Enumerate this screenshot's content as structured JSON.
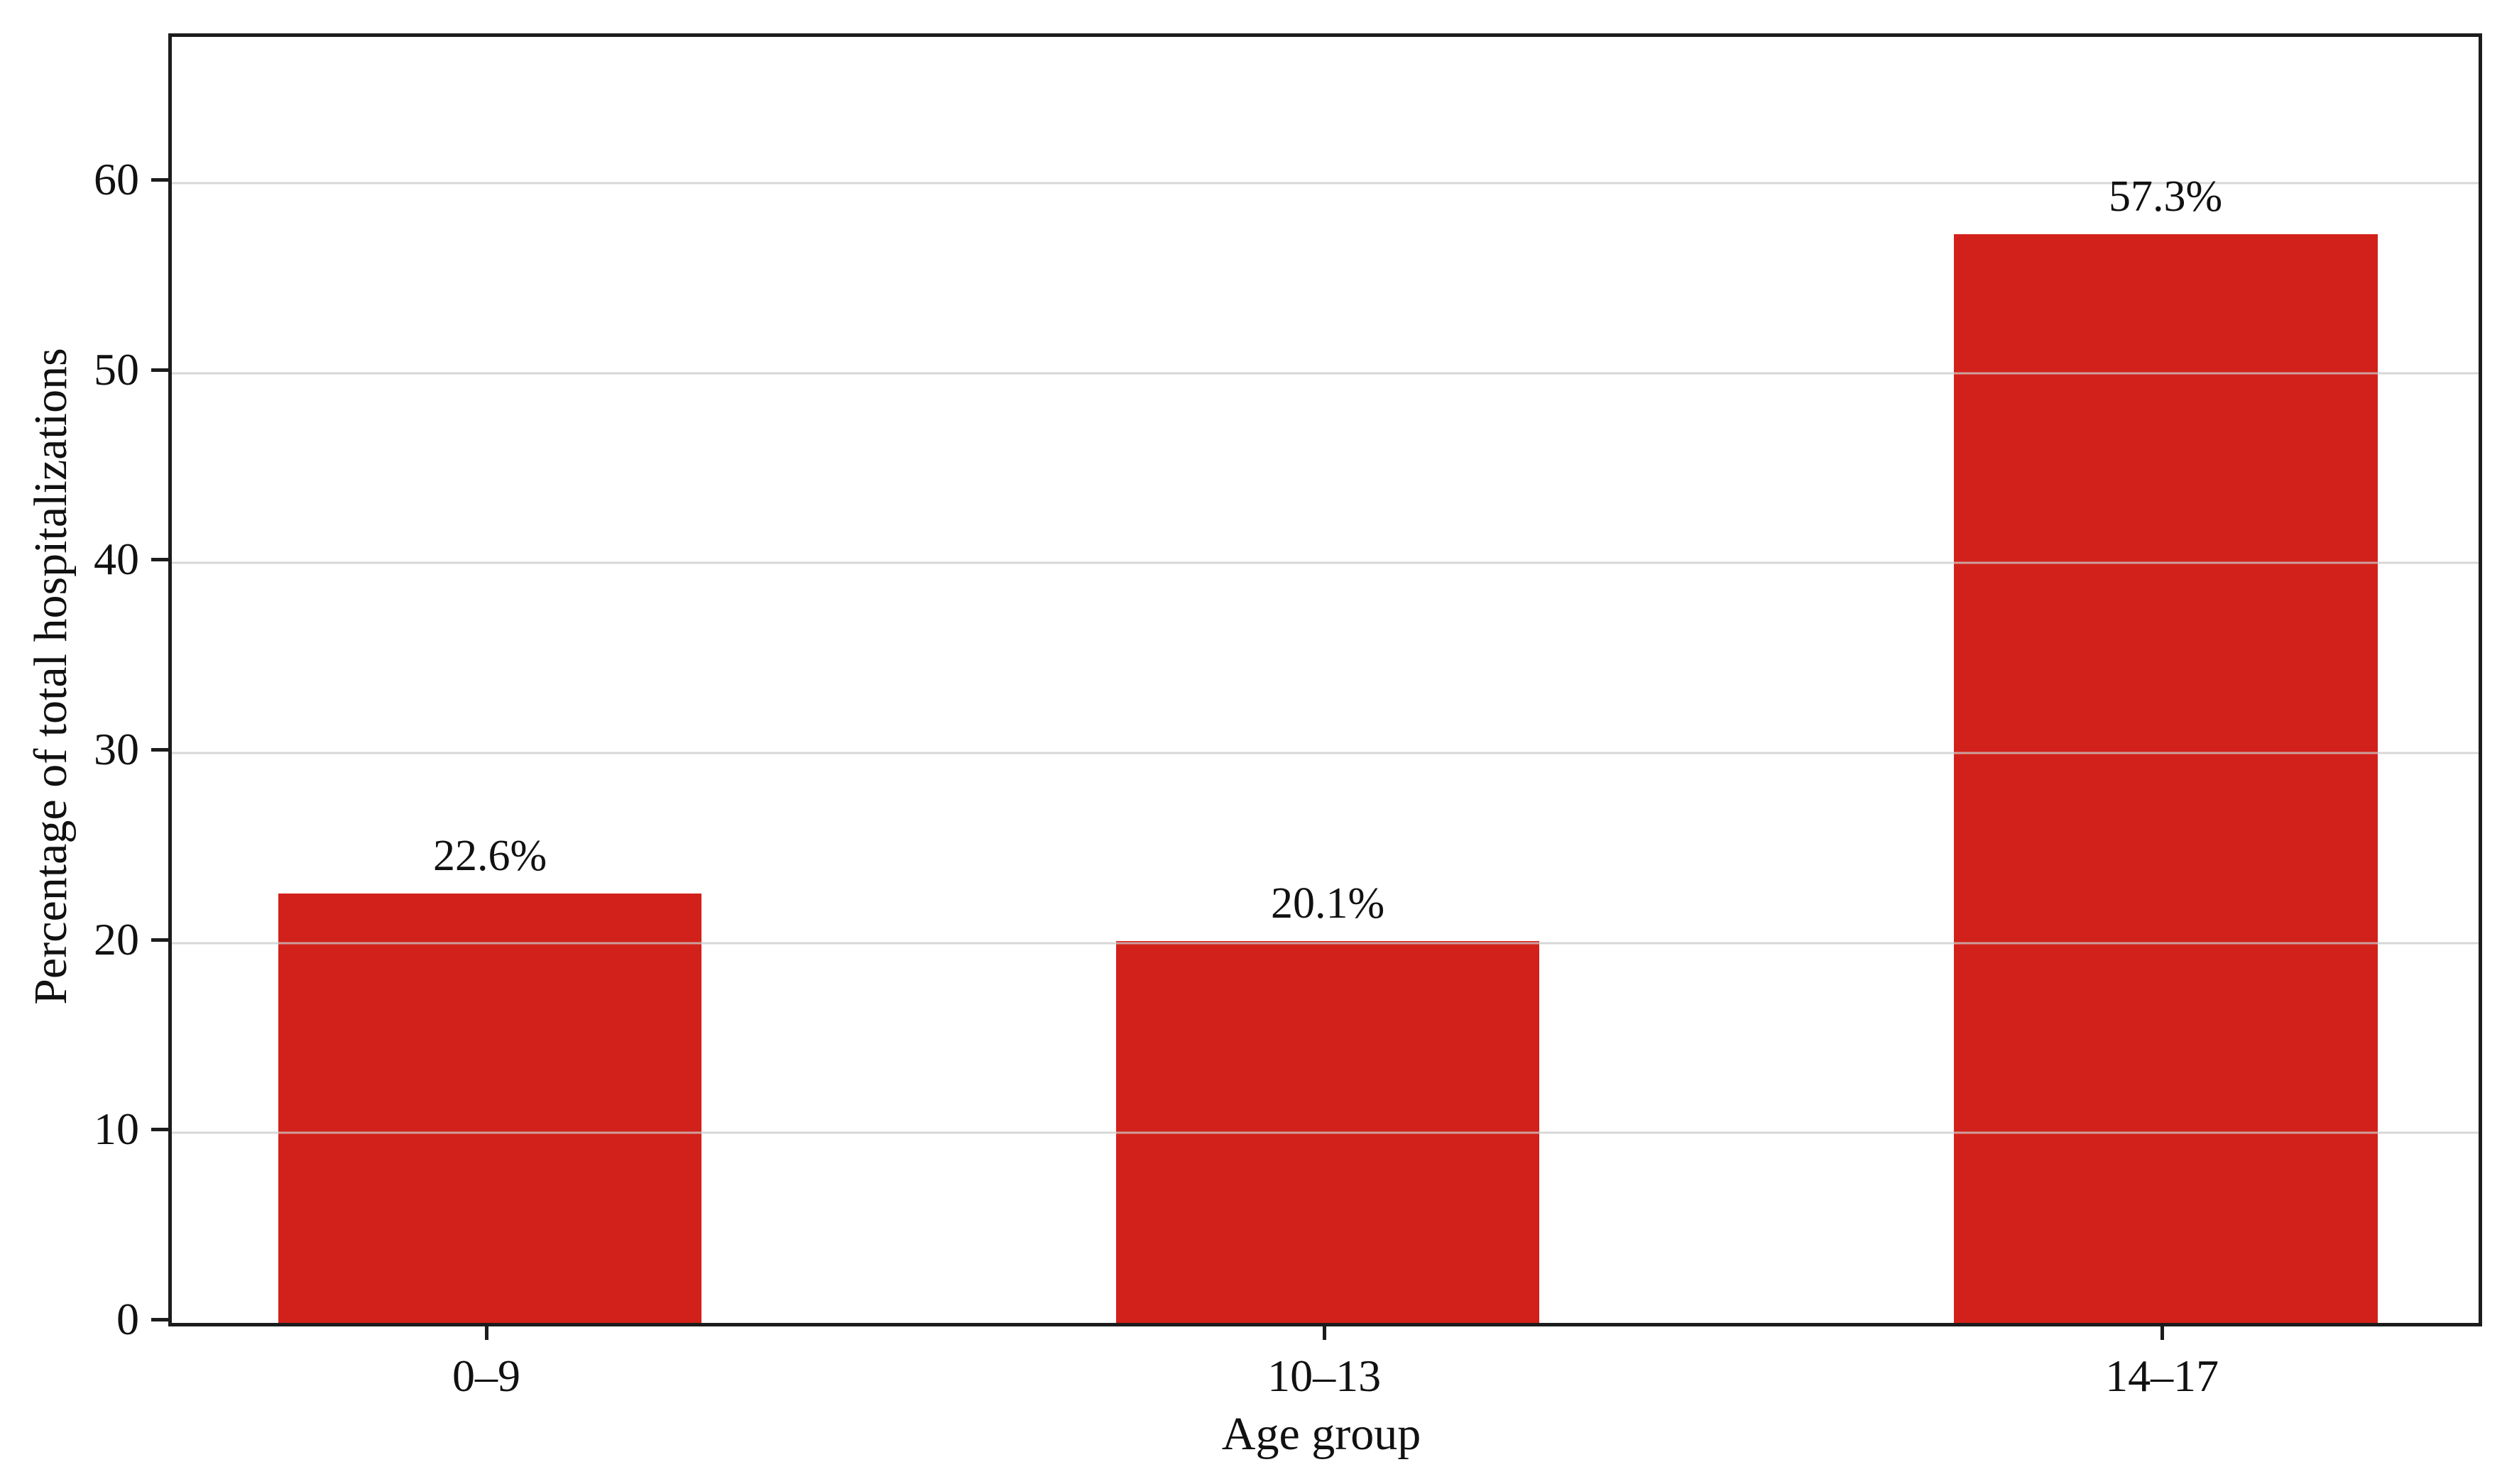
{
  "chart_data": {
    "type": "bar",
    "categories": [
      "0–9",
      "10–13",
      "14–17"
    ],
    "values": [
      22.6,
      20.1,
      57.3
    ],
    "bar_labels": [
      "22.6%",
      "20.1%",
      "57.3%"
    ],
    "title": "",
    "xlabel": "Age group",
    "ylabel": "Percentage of total hospitalizations",
    "ylim": [
      0,
      67.7
    ],
    "yticks": [
      0,
      10,
      20,
      30,
      40,
      50,
      60
    ],
    "grid": "horizontal-only, drawn over bars",
    "legend_position": "none",
    "colors": {
      "bar": "#d2211a",
      "grid": "#c9c9c9",
      "spine": "#1c1c1c",
      "text": "#111111",
      "background": "#ffffff"
    }
  }
}
